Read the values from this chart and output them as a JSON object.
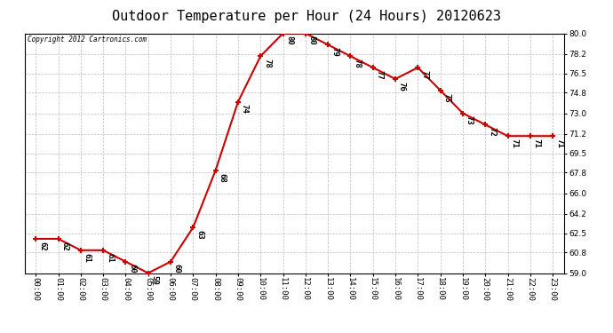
{
  "title": "Outdoor Temperature per Hour (24 Hours) 20120623",
  "copyright": "Copyright 2012 Cartronics.com",
  "hours": [
    "00:00",
    "01:00",
    "02:00",
    "03:00",
    "04:00",
    "05:00",
    "06:00",
    "07:00",
    "08:00",
    "09:00",
    "10:00",
    "11:00",
    "12:00",
    "13:00",
    "14:00",
    "15:00",
    "16:00",
    "17:00",
    "18:00",
    "19:00",
    "20:00",
    "21:00",
    "22:00",
    "23:00"
  ],
  "temperatures": [
    62,
    62,
    61,
    61,
    60,
    59,
    60,
    63,
    68,
    74,
    78,
    80,
    80,
    79,
    78,
    77,
    76,
    77,
    75,
    73,
    72,
    71,
    71,
    71
  ],
  "line_color": "#cc0000",
  "marker_color": "#cc0000",
  "bg_color": "#ffffff",
  "grid_color": "#bbbbbb",
  "ylim_min": 59.0,
  "ylim_max": 80.0,
  "yticks": [
    59.0,
    60.8,
    62.5,
    64.2,
    66.0,
    67.8,
    69.5,
    71.2,
    73.0,
    74.8,
    76.5,
    78.2,
    80.0
  ],
  "title_fontsize": 11,
  "tick_fontsize": 6.5,
  "annotation_fontsize": 6.5
}
